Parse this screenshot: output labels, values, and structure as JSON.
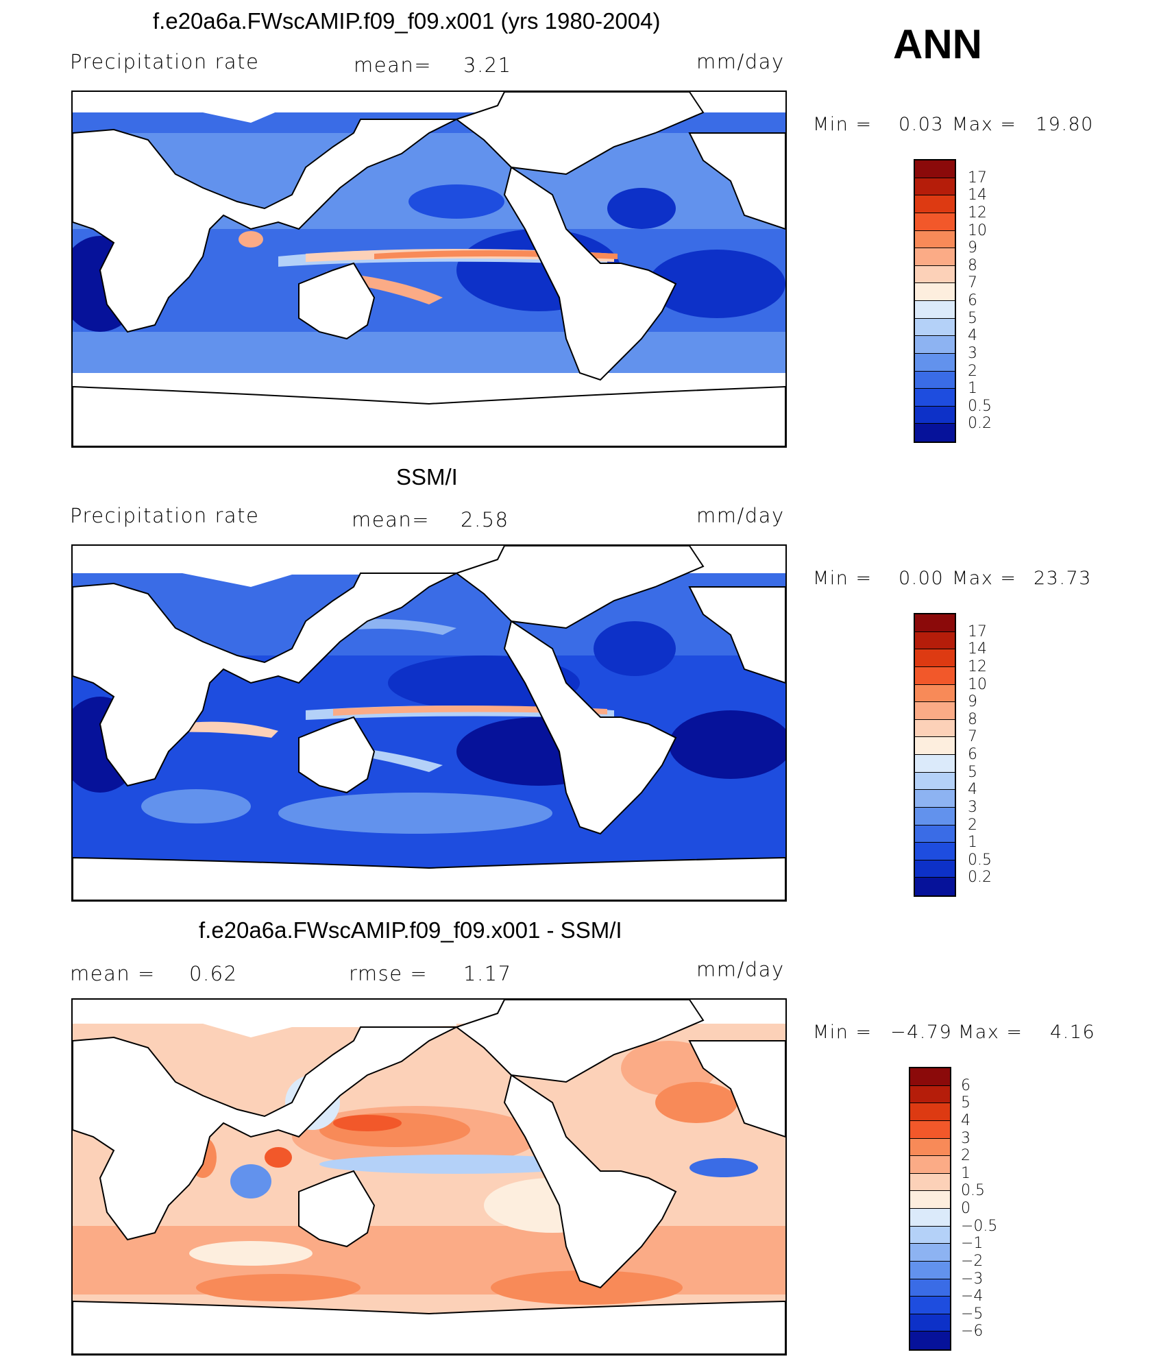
{
  "season": "ANN",
  "panels": [
    {
      "title": "f.e20a6a.FWscAMIP.f09_f09.x001 (yrs 1980-2004)",
      "left_label": "Precipitation  rate",
      "mean_label": "mean=",
      "mean_value": "3.21",
      "units": "mm/day",
      "min_label": "Min  =",
      "min_value": "0.03",
      "max_label": "Max  =",
      "max_value": "19.80",
      "colorbar_ticks": [
        "17",
        "14",
        "12",
        "10",
        "9",
        "8",
        "7",
        "6",
        "5",
        "4",
        "3",
        "2",
        "1",
        "0.5",
        "0.2"
      ],
      "colorbar_colors": [
        "#8b0a0a",
        "#b51d0a",
        "#dd3a12",
        "#f2582a",
        "#f88a58",
        "#fbab86",
        "#fcd1b8",
        "#fdeede",
        "#dbeafa",
        "#b4d1f8",
        "#8db3f2",
        "#6292ed",
        "#3a6ce6",
        "#1e4ddf",
        "#0d31c8",
        "#06129a"
      ]
    },
    {
      "title": "SSM/I",
      "left_label": "Precipitation  rate",
      "mean_label": "mean=",
      "mean_value": "2.58",
      "units": "mm/day",
      "min_label": "Min  =",
      "min_value": "0.00",
      "max_label": "Max  =",
      "max_value": "23.73",
      "colorbar_ticks": [
        "17",
        "14",
        "12",
        "10",
        "9",
        "8",
        "7",
        "6",
        "5",
        "4",
        "3",
        "2",
        "1",
        "0.5",
        "0.2"
      ],
      "colorbar_colors": [
        "#8b0a0a",
        "#b51d0a",
        "#dd3a12",
        "#f2582a",
        "#f88a58",
        "#fbab86",
        "#fcd1b8",
        "#fdeede",
        "#dbeafa",
        "#b4d1f8",
        "#8db3f2",
        "#6292ed",
        "#3a6ce6",
        "#1e4ddf",
        "#0d31c8",
        "#06129a"
      ]
    },
    {
      "title": "f.e20a6a.FWscAMIP.f09_f09.x001 - SSM/I",
      "left_label": "mean  =",
      "mean_value": "0.62",
      "rmse_label": "rmse  =",
      "rmse_value": "1.17",
      "units": "mm/day",
      "min_label": "Min  =",
      "min_value": "−4.79",
      "max_label": "Max  =",
      "max_value": "4.16",
      "colorbar_ticks": [
        "6",
        "5",
        "4",
        "3",
        "2",
        "1",
        "0.5",
        "0",
        "−0.5",
        "−1",
        "−2",
        "−3",
        "−4",
        "−5",
        "−6"
      ],
      "colorbar_colors": [
        "#8b0a0a",
        "#b51d0a",
        "#dd3a12",
        "#f2582a",
        "#f88a58",
        "#fbab86",
        "#fcd1b8",
        "#fdeede",
        "#dbeafa",
        "#b4d1f8",
        "#8db3f2",
        "#6292ed",
        "#3a6ce6",
        "#1e4ddf",
        "#0d31c8",
        "#06129a"
      ]
    }
  ]
}
